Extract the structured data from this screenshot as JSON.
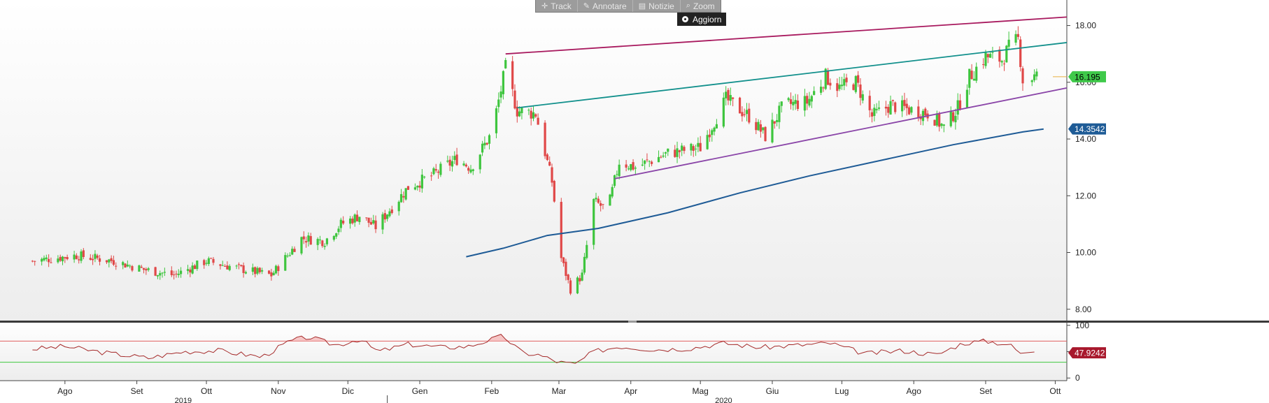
{
  "toolbar": {
    "items": [
      {
        "label": "Track",
        "icon": "crosshair-icon",
        "glyph": "✛"
      },
      {
        "label": "Annotare",
        "icon": "pencil-icon",
        "glyph": "✎"
      },
      {
        "label": "Notizie",
        "icon": "news-icon",
        "glyph": "▤"
      },
      {
        "label": "Zoom",
        "icon": "magnifier-icon",
        "glyph": "⌕"
      }
    ],
    "refresh_label": "Aggiorn"
  },
  "colors": {
    "up": "#3ec53e",
    "down": "#e04848",
    "ma": "#1e5b96",
    "resistance_top": "#a8195e",
    "channel_mid": "#12908c",
    "support": "#8a45a8",
    "rsi_line": "#a52a2a",
    "rsi_upper": "#e06060",
    "rsi_lower": "#40c840",
    "price_badge": "#3fc94a",
    "ma_badge": "#1e5b96",
    "rsi_badge": "#a8182c"
  },
  "chart_data": [
    {
      "type": "candlestick",
      "ylim": [
        7.6,
        18.9
      ],
      "y_ticks": [
        "8.00",
        "10.00",
        "12.00",
        "14.00",
        "16.00",
        "18.00"
      ],
      "x_ticks": [
        "Ago",
        "Set",
        "Ott",
        "Nov",
        "Dic",
        "Gen",
        "Feb",
        "Mar",
        "Apr",
        "Mag",
        "Giu",
        "Lug",
        "Ago",
        "Set",
        "Ott"
      ],
      "year_labels": [
        "2019",
        "2020"
      ],
      "last_price": "16.195",
      "ma_value": "14.3542",
      "anchors": [
        [
          "2019-08-01",
          9.7
        ],
        [
          "2019-08-20",
          9.9
        ],
        [
          "2019-09-05",
          9.7
        ],
        [
          "2019-09-18",
          9.4
        ],
        [
          "2019-10-01",
          9.2
        ],
        [
          "2019-10-15",
          9.7
        ],
        [
          "2019-10-31",
          9.4
        ],
        [
          "2019-11-12",
          9.2
        ],
        [
          "2019-11-25",
          10.5
        ],
        [
          "2019-12-05",
          10.4
        ],
        [
          "2019-12-12",
          11.0
        ],
        [
          "2019-12-20",
          11.3
        ],
        [
          "2019-12-27",
          10.9
        ],
        [
          "2020-01-10",
          12.3
        ],
        [
          "2020-01-20",
          12.7
        ],
        [
          "2020-01-31",
          13.3
        ],
        [
          "2020-02-06",
          13.0
        ],
        [
          "2020-02-15",
          14.2
        ],
        [
          "2020-02-21",
          16.5
        ],
        [
          "2020-02-26",
          15.0
        ],
        [
          "2020-03-05",
          14.9
        ],
        [
          "2020-03-12",
          12.5
        ],
        [
          "2020-03-16",
          9.8
        ],
        [
          "2020-03-20",
          8.7
        ],
        [
          "2020-03-25",
          9.2
        ],
        [
          "2020-03-30",
          11.8
        ],
        [
          "2020-04-05",
          11.5
        ],
        [
          "2020-04-10",
          13.2
        ],
        [
          "2020-04-17",
          13.0
        ],
        [
          "2020-05-01",
          13.5
        ],
        [
          "2020-05-15",
          13.7
        ],
        [
          "2020-05-26",
          15.4
        ],
        [
          "2020-06-05",
          14.8
        ],
        [
          "2020-06-12",
          14.1
        ],
        [
          "2020-06-20",
          15.2
        ],
        [
          "2020-06-30",
          15.3
        ],
        [
          "2020-07-08",
          16.2
        ],
        [
          "2020-07-14",
          15.8
        ],
        [
          "2020-07-21",
          16.0
        ],
        [
          "2020-07-28",
          14.8
        ],
        [
          "2020-08-05",
          15.2
        ],
        [
          "2020-08-15",
          15.0
        ],
        [
          "2020-08-22",
          14.9
        ],
        [
          "2020-08-28",
          14.4
        ],
        [
          "2020-09-03",
          15.1
        ],
        [
          "2020-09-08",
          16.2
        ],
        [
          "2020-09-15",
          16.9
        ],
        [
          "2020-09-22",
          16.8
        ],
        [
          "2020-09-25",
          17.2
        ],
        [
          "2020-09-29",
          17.5
        ],
        [
          "2020-10-01",
          16.1
        ],
        [
          "2020-10-07",
          16.2
        ]
      ],
      "moving_average": [
        [
          "2020-02-04",
          9.85
        ],
        [
          "2020-02-20",
          10.15
        ],
        [
          "2020-03-10",
          10.6
        ],
        [
          "2020-04-01",
          10.85
        ],
        [
          "2020-05-01",
          11.4
        ],
        [
          "2020-06-01",
          12.1
        ],
        [
          "2020-07-01",
          12.7
        ],
        [
          "2020-08-01",
          13.25
        ],
        [
          "2020-09-01",
          13.8
        ],
        [
          "2020-10-01",
          14.25
        ],
        [
          "2020-10-10",
          14.35
        ]
      ],
      "trendlines": [
        {
          "role": "resistance_top",
          "from": [
            "2020-02-21",
            17.0
          ],
          "to": [
            "2020-10-20",
            18.3
          ]
        },
        {
          "role": "channel_mid",
          "from": [
            "2020-02-26",
            15.1
          ],
          "to": [
            "2020-10-20",
            17.4
          ]
        },
        {
          "role": "support",
          "from": [
            "2020-04-08",
            12.6
          ],
          "to": [
            "2020-10-20",
            15.8
          ]
        }
      ]
    },
    {
      "type": "line",
      "ylim": [
        -5,
        105
      ],
      "y_ticks": [
        "100",
        "50",
        "0"
      ],
      "levels": [
        70,
        30
      ],
      "last_value": "47.9242",
      "anchors": [
        [
          "2019-08-01",
          55
        ],
        [
          "2019-08-15",
          60
        ],
        [
          "2019-09-01",
          48
        ],
        [
          "2019-09-20",
          38
        ],
        [
          "2019-10-05",
          50
        ],
        [
          "2019-10-20",
          52
        ],
        [
          "2019-11-08",
          40
        ],
        [
          "2019-11-20",
          70
        ],
        [
          "2019-11-28",
          78
        ],
        [
          "2019-12-10",
          62
        ],
        [
          "2019-12-20",
          74
        ],
        [
          "2019-12-28",
          50
        ],
        [
          "2020-01-10",
          64
        ],
        [
          "2020-01-25",
          58
        ],
        [
          "2020-02-05",
          60
        ],
        [
          "2020-02-20",
          80
        ],
        [
          "2020-02-28",
          48
        ],
        [
          "2020-03-06",
          44
        ],
        [
          "2020-03-15",
          30
        ],
        [
          "2020-03-22",
          26
        ],
        [
          "2020-03-30",
          50
        ],
        [
          "2020-04-10",
          60
        ],
        [
          "2020-04-25",
          54
        ],
        [
          "2020-05-10",
          56
        ],
        [
          "2020-05-25",
          66
        ],
        [
          "2020-06-10",
          58
        ],
        [
          "2020-06-25",
          62
        ],
        [
          "2020-07-10",
          66
        ],
        [
          "2020-07-25",
          46
        ],
        [
          "2020-08-10",
          52
        ],
        [
          "2020-08-25",
          44
        ],
        [
          "2020-09-05",
          66
        ],
        [
          "2020-09-15",
          70
        ],
        [
          "2020-09-25",
          64
        ],
        [
          "2020-10-01",
          44
        ],
        [
          "2020-10-07",
          48
        ]
      ]
    }
  ]
}
